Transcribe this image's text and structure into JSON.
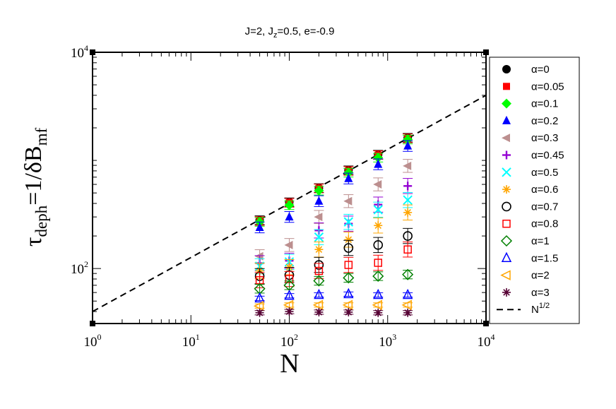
{
  "chart_data": {
    "type": "scatter",
    "title": {
      "main": "J=2, J",
      "sub": "z",
      "rest": "=0.5,  e=-0.9"
    },
    "xlabel": "N",
    "ylabel": {
      "tau": "τ",
      "sub": "deph",
      "mid": "=1/δB",
      "sub2": "mf"
    },
    "x_scale": "log",
    "y_scale": "log",
    "xlim": [
      1,
      10000
    ],
    "ylim": [
      31,
      10000
    ],
    "x_ticks": [
      {
        "base": "10",
        "exp": "0",
        "value": 1
      },
      {
        "base": "10",
        "exp": "1",
        "value": 10
      },
      {
        "base": "10",
        "exp": "2",
        "value": 100
      },
      {
        "base": "10",
        "exp": "3",
        "value": 1000
      },
      {
        "base": "10",
        "exp": "4",
        "value": 10000
      }
    ],
    "y_ticks": [
      {
        "base": "10",
        "exp": "2",
        "value": 100
      },
      {
        "base": "10",
        "exp": "4",
        "value": 10000
      }
    ],
    "x": [
      50,
      100,
      200,
      400,
      800,
      1600
    ],
    "reference_line": {
      "name": "N",
      "exp": "1/2",
      "coefficient": 40,
      "exponent": 0.5
    },
    "series": [
      {
        "name": "α=0",
        "marker": "circle-filled",
        "color": "#000000",
        "values": [
          280,
          410,
          555,
          810,
          1130,
          1620
        ],
        "errors": [
          0.04,
          0.04,
          0.04,
          0.04,
          0.04,
          0.04
        ]
      },
      {
        "name": "α=0.05",
        "marker": "square-filled",
        "color": "#ff0000",
        "values": [
          275,
          405,
          550,
          800,
          1120,
          1600
        ],
        "errors": [
          0.04,
          0.04,
          0.04,
          0.04,
          0.04,
          0.04
        ]
      },
      {
        "name": "α=0.1",
        "marker": "diamond-filled",
        "color": "#00ff00",
        "values": [
          270,
          385,
          525,
          770,
          1060,
          1560
        ],
        "errors": [
          0.04,
          0.04,
          0.04,
          0.04,
          0.04,
          0.04
        ]
      },
      {
        "name": "α=0.2",
        "marker": "triangle-up-filled",
        "color": "#0000ff",
        "values": [
          240,
          300,
          420,
          680,
          920,
          1360
        ],
        "errors": [
          0.05,
          0.05,
          0.05,
          0.05,
          0.05,
          0.05
        ]
      },
      {
        "name": "α=0.3",
        "marker": "triangle-left-filled",
        "color": "#bc8f8f",
        "values": [
          130,
          165,
          300,
          420,
          600,
          890
        ],
        "errors": [
          0.06,
          0.06,
          0.06,
          0.06,
          0.06,
          0.06
        ]
      },
      {
        "name": "α=0.45",
        "marker": "plus",
        "color": "#9400d3",
        "values": [
          112,
          118,
          225,
          260,
          390,
          580
        ],
        "errors": [
          0.07,
          0.07,
          0.07,
          0.07,
          0.07,
          0.07
        ]
      },
      {
        "name": "α=0.5",
        "marker": "x",
        "color": "#00ffff",
        "values": [
          105,
          115,
          195,
          270,
          350,
          430
        ],
        "errors": [
          0.07,
          0.07,
          0.07,
          0.07,
          0.07,
          0.07
        ]
      },
      {
        "name": "α=0.6",
        "marker": "asterisk",
        "color": "#ffa500",
        "values": [
          95,
          103,
          150,
          185,
          250,
          330
        ],
        "errors": [
          0.07,
          0.07,
          0.07,
          0.07,
          0.07,
          0.07
        ]
      },
      {
        "name": "α=0.7",
        "marker": "circle-open",
        "color": "#000000",
        "values": [
          85,
          87,
          108,
          155,
          165,
          200
        ],
        "errors": [
          0.07,
          0.07,
          0.07,
          0.07,
          0.07,
          0.07
        ]
      },
      {
        "name": "α=0.8",
        "marker": "square-open",
        "color": "#ff0000",
        "values": [
          78,
          80,
          95,
          108,
          113,
          150
        ],
        "errors": [
          0.07,
          0.07,
          0.07,
          0.07,
          0.07,
          0.07
        ]
      },
      {
        "name": "α=1",
        "marker": "diamond-open",
        "color": "#008000",
        "values": [
          65,
          70,
          77,
          82,
          85,
          88
        ],
        "errors": [
          0.04,
          0.04,
          0.04,
          0.04,
          0.04,
          0.04
        ]
      },
      {
        "name": "α=1.5",
        "marker": "triangle-up-open",
        "color": "#0000ff",
        "values": [
          53,
          56,
          57,
          58,
          57,
          57
        ],
        "errors": [
          0.02,
          0.02,
          0.02,
          0.02,
          0.02,
          0.02
        ]
      },
      {
        "name": "α=2",
        "marker": "triangle-left-open",
        "color": "#ffa500",
        "values": [
          45,
          46,
          46,
          46,
          46,
          46
        ],
        "errors": [
          0.02,
          0.02,
          0.02,
          0.02,
          0.02,
          0.02
        ]
      },
      {
        "name": "α=3",
        "marker": "asterisk",
        "color": "#550033",
        "values": [
          39,
          40,
          39.5,
          39.5,
          39,
          39
        ],
        "errors": [
          0.02,
          0.02,
          0.02,
          0.02,
          0.02,
          0.02
        ]
      }
    ],
    "legend": "right",
    "grid": false
  }
}
